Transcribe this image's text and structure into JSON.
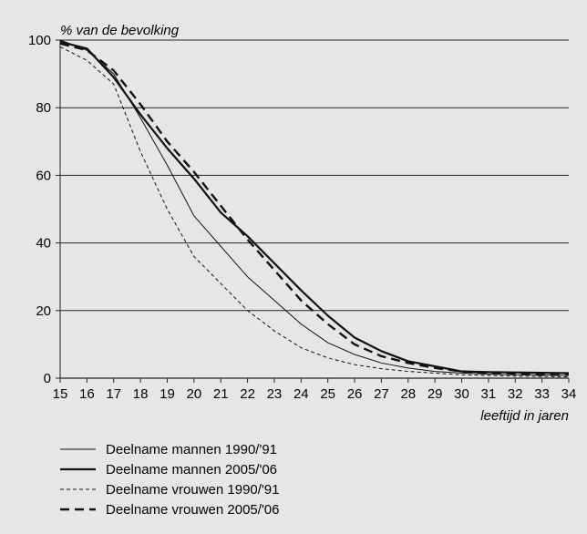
{
  "chart_data": {
    "type": "line",
    "title": "",
    "ylabel": "% van de bevolking",
    "xlabel": "leeftijd in jaren",
    "xlim": [
      15,
      34
    ],
    "ylim": [
      0,
      100
    ],
    "x": [
      15,
      16,
      17,
      18,
      19,
      20,
      21,
      22,
      23,
      24,
      25,
      26,
      27,
      28,
      29,
      30,
      31,
      32,
      33,
      34
    ],
    "yticks": [
      0,
      20,
      40,
      60,
      80,
      100
    ],
    "grid": "horizontal",
    "legend_position": "bottom",
    "series": [
      {
        "name": "Deelname mannen 1990/'91",
        "style": "thin-solid",
        "values": [
          100,
          97,
          90,
          77,
          63,
          48,
          39,
          30,
          23,
          16,
          10.5,
          7,
          4.5,
          3,
          2,
          1.5,
          1.2,
          1,
          1,
          0.8
        ]
      },
      {
        "name": "Deelname mannen 2005/'06",
        "style": "thick-solid",
        "values": [
          99.5,
          97.5,
          89,
          78,
          68,
          59,
          49,
          42,
          34,
          26,
          18.5,
          12,
          8,
          5,
          3.5,
          2,
          1.8,
          1.7,
          1.6,
          1.5
        ]
      },
      {
        "name": "Deelname vrouwen 1990/'91",
        "style": "thin-dashed",
        "values": [
          98,
          94,
          87,
          67,
          50,
          36,
          28,
          20,
          14,
          9,
          6,
          4,
          2.8,
          2,
          1.5,
          1,
          0.8,
          0.6,
          0.5,
          0.4
        ]
      },
      {
        "name": "Deelname vrouwen 2005/'06",
        "style": "thick-dashed",
        "values": [
          99,
          97,
          91,
          81,
          70,
          61,
          51,
          41,
          32,
          23,
          16,
          10,
          6.5,
          4.5,
          3,
          2,
          1.5,
          1.2,
          1,
          1
        ]
      }
    ]
  }
}
